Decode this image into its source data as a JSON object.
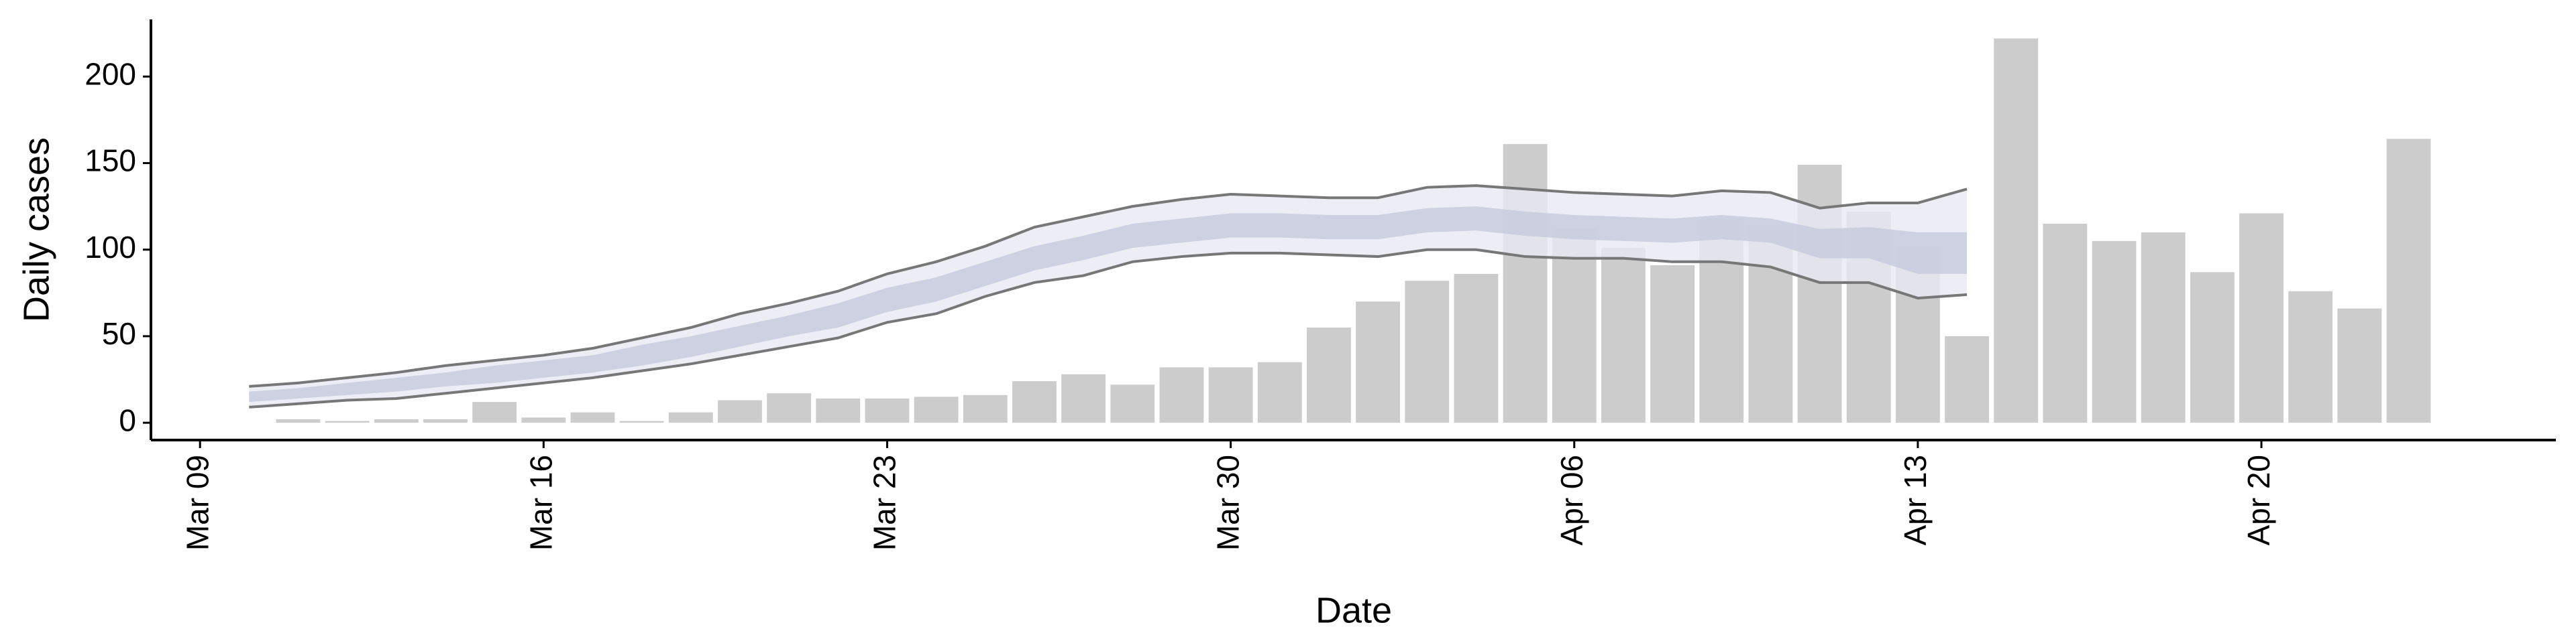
{
  "chart_data": {
    "type": "bar",
    "x_label": "Date",
    "y_label": "Daily cases",
    "x": [
      "03-11",
      "03-12",
      "03-13",
      "03-14",
      "03-15",
      "03-16",
      "03-17",
      "03-18",
      "03-19",
      "03-20",
      "03-21",
      "03-22",
      "03-23",
      "03-24",
      "03-25",
      "03-26",
      "03-27",
      "03-28",
      "03-29",
      "03-30",
      "03-31",
      "04-01",
      "04-02",
      "04-03",
      "04-04",
      "04-05",
      "04-06",
      "04-07",
      "04-08",
      "04-09",
      "04-10",
      "04-11",
      "04-12",
      "04-13",
      "04-14",
      "04-15",
      "04-16",
      "04-17",
      "04-18",
      "04-19",
      "04-20",
      "04-21",
      "04-22",
      "04-23"
    ],
    "values": [
      2,
      1,
      2,
      2,
      12,
      3,
      6,
      1,
      6,
      13,
      17,
      14,
      14,
      15,
      16,
      24,
      28,
      22,
      32,
      32,
      35,
      55,
      70,
      82,
      86,
      161,
      112,
      101,
      91,
      118,
      114,
      149,
      122,
      102,
      50,
      222,
      115,
      105,
      110,
      87,
      121,
      76,
      66,
      164
    ],
    "color": "#cccccc",
    "interval": {
      "x": [
        "03-10",
        "03-11",
        "03-12",
        "03-13",
        "03-14",
        "03-15",
        "03-16",
        "03-17",
        "03-18",
        "03-19",
        "03-20",
        "03-21",
        "03-22",
        "03-23",
        "03-24",
        "03-25",
        "03-26",
        "03-27",
        "03-28",
        "03-29",
        "03-30",
        "03-31",
        "04-01",
        "04-02",
        "04-03",
        "04-04",
        "04-05",
        "04-06",
        "04-07",
        "04-08",
        "04-09",
        "04-10",
        "04-11",
        "04-12",
        "04-13",
        "04-14"
      ],
      "upper": [
        21,
        23,
        26,
        29,
        33,
        36,
        39,
        43,
        49,
        55,
        63,
        69,
        76,
        86,
        93,
        102,
        113,
        119,
        125,
        129,
        132,
        131,
        130,
        130,
        136,
        137,
        135,
        133,
        132,
        131,
        134,
        133,
        124,
        127,
        127,
        135
      ],
      "lower": [
        9,
        11,
        13,
        14,
        17,
        20,
        23,
        26,
        30,
        34,
        39,
        44,
        49,
        58,
        63,
        73,
        81,
        85,
        93,
        96,
        98,
        98,
        97,
        96,
        100,
        100,
        96,
        95,
        95,
        93,
        93,
        90,
        81,
        81,
        72,
        74
      ],
      "inner_upper": [
        18,
        20,
        23,
        26,
        29,
        33,
        36,
        39,
        45,
        50,
        56,
        62,
        69,
        78,
        84,
        93,
        102,
        108,
        115,
        118,
        121,
        121,
        120,
        120,
        124,
        125,
        122,
        120,
        119,
        118,
        120,
        118,
        112,
        113,
        110,
        110
      ],
      "inner_lower": [
        12,
        14,
        16,
        18,
        21,
        23,
        26,
        29,
        33,
        38,
        44,
        50,
        55,
        64,
        70,
        79,
        88,
        94,
        101,
        104,
        107,
        107,
        106,
        106,
        110,
        111,
        108,
        106,
        105,
        104,
        106,
        104,
        95,
        95,
        86,
        86
      ],
      "line_color": "#777777",
      "fill": "#e9eaf2",
      "inner_fill": "#c4c9dc"
    },
    "xlim": [
      "03-08",
      "04-26"
    ],
    "xticks": [
      {
        "value": "03-09",
        "label": "Mar 09"
      },
      {
        "value": "03-16",
        "label": "Mar 16"
      },
      {
        "value": "03-23",
        "label": "Mar 23"
      },
      {
        "value": "03-30",
        "label": "Mar 30"
      },
      {
        "value": "04-06",
        "label": "Apr 06"
      },
      {
        "value": "04-13",
        "label": "Apr 13"
      },
      {
        "value": "04-20",
        "label": "Apr 20"
      }
    ],
    "ylim": [
      -10,
      233
    ],
    "yticks": [
      0,
      50,
      100,
      150,
      200
    ],
    "grid": false
  }
}
